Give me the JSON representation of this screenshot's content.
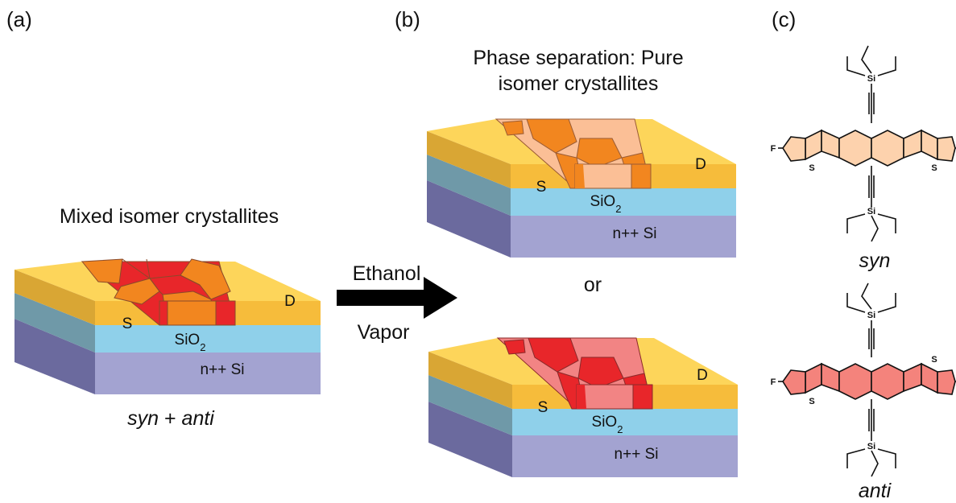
{
  "panels": {
    "a": {
      "label": "(a)",
      "caption": "Mixed isomer crystallites",
      "sample_parts": [
        "syn",
        "+",
        "anti"
      ],
      "device": {
        "source": "S",
        "drain": "D",
        "oxide_main": "SiO",
        "oxide_sub": "2",
        "substrate": "n++ Si"
      }
    },
    "b": {
      "label": "(b)",
      "caption_line1": "Phase separation: Pure",
      "caption_line2": "isomer crystallites",
      "or_text": "or",
      "devices": [
        {
          "source": "S",
          "drain": "D",
          "oxide_main": "SiO",
          "oxide_sub": "2",
          "substrate": "n++ Si"
        },
        {
          "source": "S",
          "drain": "D",
          "oxide_main": "SiO",
          "oxide_sub": "2",
          "substrate": "n++ Si"
        }
      ]
    },
    "c": {
      "label": "(c)",
      "molecules": [
        {
          "name": "syn",
          "atoms": {
            "silicon": "Si",
            "fluorine": "F",
            "sulfur": "S"
          }
        },
        {
          "name": "anti",
          "atoms": {
            "silicon": "Si",
            "fluorine": "F",
            "sulfur": "S"
          }
        }
      ]
    }
  },
  "arrow": {
    "top_text": "Ethanol",
    "bottom_text": "Vapor"
  },
  "colors": {
    "gold_top": "#fdd55a",
    "gold_front": "#f6bc3b",
    "oxide_top": "#a9dcef",
    "oxide_front": "#8fd0ea",
    "oxide_side": "#6f99a8",
    "silicon_front": "#a3a3d1",
    "silicon_side": "#6b6a9e",
    "mixed_orange": "#f2861f",
    "mixed_red": "#e8262a",
    "pure_syn": "#fbbf96",
    "pure_anti": "#f28484",
    "syn_core_fill": "#fdd2ad",
    "anti_core_fill": "#f4837c"
  }
}
